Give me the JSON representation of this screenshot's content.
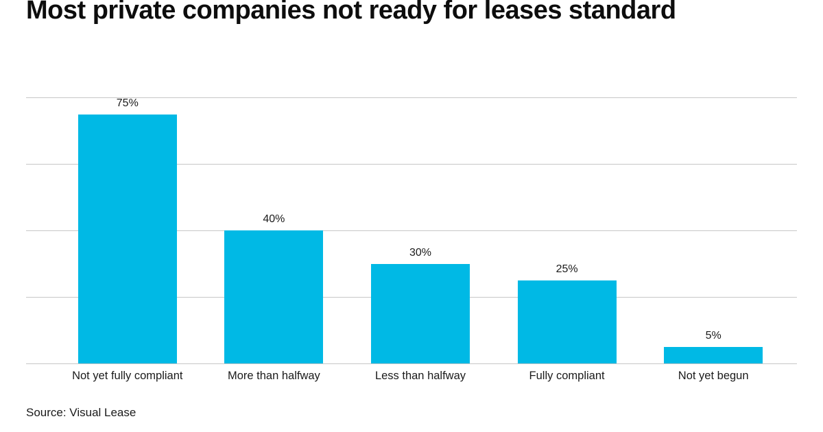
{
  "source": "Source: Visual Lease",
  "colors": {
    "bar": "#00b9e5",
    "gridline": "#c7c7c7",
    "text": "#1a1a1a"
  },
  "chart_data": {
    "type": "bar",
    "title": "Most private companies not ready for leases standard",
    "categories": [
      "Not yet fully compliant",
      "More than halfway",
      "Less than halfway",
      "Fully compliant",
      "Not yet begun"
    ],
    "values": [
      75,
      40,
      30,
      25,
      5
    ],
    "value_labels": [
      "75%",
      "40%",
      "30%",
      "25%",
      "5%"
    ],
    "xlabel": "",
    "ylabel": "",
    "ylim": [
      0,
      80
    ],
    "gridlines": [
      0,
      20,
      40,
      60,
      80
    ],
    "grid": "horizontal",
    "legend": false
  }
}
